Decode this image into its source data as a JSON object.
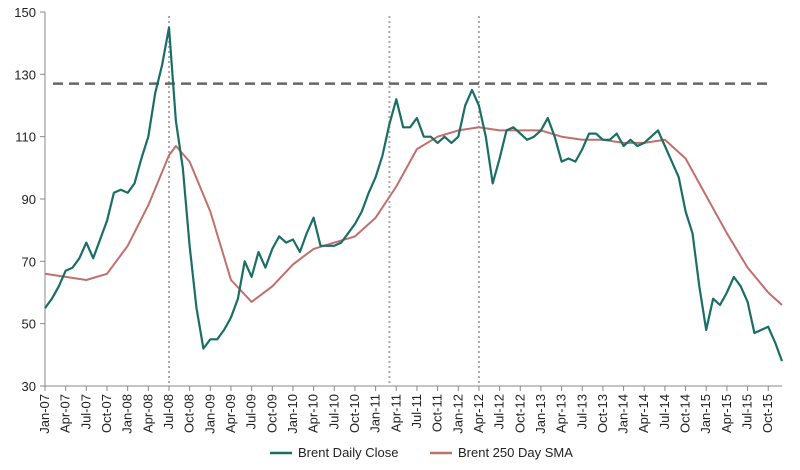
{
  "chart_data": {
    "type": "line",
    "title": "",
    "xlabel": "",
    "ylabel": "",
    "ylim": [
      30,
      150
    ],
    "y_ticks": [
      30,
      50,
      70,
      90,
      110,
      130,
      150
    ],
    "x_range": [
      "2007-01",
      "2015-12"
    ],
    "x_tick_labels": [
      "Jan-07",
      "Apr-07",
      "Jul-07",
      "Oct-07",
      "Jan-08",
      "Apr-08",
      "Jul-08",
      "Oct-08",
      "Jan-09",
      "Apr-09",
      "Jul-09",
      "Oct-09",
      "Jan-10",
      "Apr-10",
      "Jul-10",
      "Oct-10",
      "Jan-11",
      "Apr-11",
      "Jul-11",
      "Oct-11",
      "Jan-12",
      "Apr-12",
      "Jul-12",
      "Oct-12",
      "Jan-13",
      "Apr-13",
      "Jul-13",
      "Oct-13",
      "Jan-14",
      "Apr-14",
      "Jul-14",
      "Oct-14",
      "Jan-15",
      "Apr-15",
      "Jul-15",
      "Oct-15"
    ],
    "grid": false,
    "legend_position": "bottom",
    "colors": {
      "close": "#1a6e66",
      "sma": "#c0706c",
      "reference": "#666666",
      "markers": "#aaaaaa"
    },
    "series": [
      {
        "name": "Brent Daily Close",
        "x": [
          "2007-01",
          "2007-02",
          "2007-03",
          "2007-04",
          "2007-05",
          "2007-06",
          "2007-07",
          "2007-08",
          "2007-09",
          "2007-10",
          "2007-11",
          "2007-12",
          "2008-01",
          "2008-02",
          "2008-03",
          "2008-04",
          "2008-05",
          "2008-06",
          "2008-07",
          "2008-08",
          "2008-09",
          "2008-10",
          "2008-11",
          "2008-12",
          "2009-01",
          "2009-02",
          "2009-03",
          "2009-04",
          "2009-05",
          "2009-06",
          "2009-07",
          "2009-08",
          "2009-09",
          "2009-10",
          "2009-11",
          "2009-12",
          "2010-01",
          "2010-02",
          "2010-03",
          "2010-04",
          "2010-05",
          "2010-06",
          "2010-07",
          "2010-08",
          "2010-09",
          "2010-10",
          "2010-11",
          "2010-12",
          "2011-01",
          "2011-02",
          "2011-03",
          "2011-04",
          "2011-05",
          "2011-06",
          "2011-07",
          "2011-08",
          "2011-09",
          "2011-10",
          "2011-11",
          "2011-12",
          "2012-01",
          "2012-02",
          "2012-03",
          "2012-04",
          "2012-05",
          "2012-06",
          "2012-07",
          "2012-08",
          "2012-09",
          "2012-10",
          "2012-11",
          "2012-12",
          "2013-01",
          "2013-02",
          "2013-03",
          "2013-04",
          "2013-05",
          "2013-06",
          "2013-07",
          "2013-08",
          "2013-09",
          "2013-10",
          "2013-11",
          "2013-12",
          "2014-01",
          "2014-02",
          "2014-03",
          "2014-04",
          "2014-05",
          "2014-06",
          "2014-07",
          "2014-08",
          "2014-09",
          "2014-10",
          "2014-11",
          "2014-12",
          "2015-01",
          "2015-02",
          "2015-03",
          "2015-04",
          "2015-05",
          "2015-06",
          "2015-07",
          "2015-08",
          "2015-09",
          "2015-10",
          "2015-11",
          "2015-12"
        ],
        "values": [
          55,
          58,
          62,
          67,
          68,
          71,
          76,
          71,
          77,
          83,
          92,
          93,
          92,
          95,
          103,
          110,
          124,
          133,
          145,
          115,
          100,
          75,
          55,
          42,
          45,
          45,
          48,
          52,
          58,
          70,
          65,
          73,
          68,
          74,
          78,
          76,
          77,
          73,
          79,
          84,
          75,
          75,
          75,
          76,
          79,
          82,
          86,
          92,
          97,
          104,
          114,
          122,
          113,
          113,
          116,
          110,
          110,
          108,
          110,
          108,
          110,
          120,
          125,
          120,
          110,
          95,
          103,
          112,
          113,
          111,
          109,
          110,
          112,
          116,
          110,
          102,
          103,
          102,
          106,
          111,
          111,
          109,
          109,
          111,
          107,
          109,
          107,
          108,
          110,
          112,
          107,
          102,
          97,
          86,
          79,
          62,
          48,
          58,
          56,
          60,
          65,
          62,
          57,
          47,
          48,
          49,
          44,
          38
        ]
      },
      {
        "name": "Brent 250 Day SMA",
        "x": [
          "2007-01",
          "2007-04",
          "2007-07",
          "2007-10",
          "2008-01",
          "2008-04",
          "2008-07",
          "2008-08",
          "2008-10",
          "2009-01",
          "2009-04",
          "2009-07",
          "2009-10",
          "2010-01",
          "2010-04",
          "2010-07",
          "2010-10",
          "2011-01",
          "2011-04",
          "2011-07",
          "2011-10",
          "2012-01",
          "2012-04",
          "2012-07",
          "2012-10",
          "2013-01",
          "2013-04",
          "2013-07",
          "2013-10",
          "2014-01",
          "2014-04",
          "2014-07",
          "2014-10",
          "2015-01",
          "2015-04",
          "2015-07",
          "2015-10",
          "2015-12"
        ],
        "values": [
          66,
          65,
          64,
          66,
          75,
          88,
          104,
          107,
          102,
          86,
          64,
          57,
          62,
          69,
          74,
          76,
          78,
          84,
          94,
          106,
          110,
          112,
          113,
          112,
          112,
          112,
          110,
          109,
          109,
          108,
          108,
          109,
          103,
          91,
          79,
          68,
          60,
          56
        ]
      }
    ],
    "reference_line": {
      "value": 127
    },
    "vertical_markers": [
      "2008-07",
      "2011-03",
      "2012-04"
    ]
  }
}
